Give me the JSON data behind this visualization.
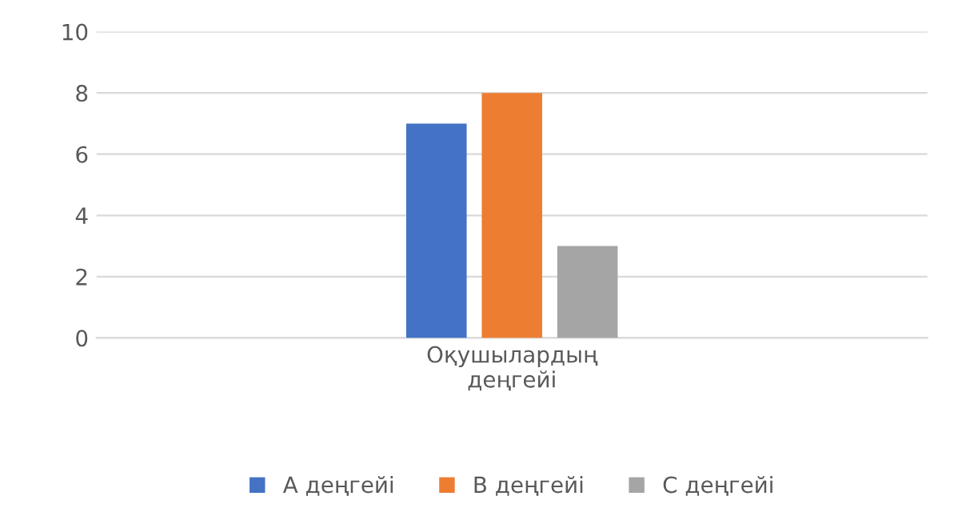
{
  "chart_data": {
    "type": "bar",
    "categories": [
      "Оқушылардың деңгейі"
    ],
    "series": [
      {
        "name": "A деңгейі",
        "color": "#4472c4",
        "values": [
          7
        ]
      },
      {
        "name": "B деңгейі",
        "color": "#ed7d31",
        "values": [
          8
        ]
      },
      {
        "name": "C деңгейі",
        "color": "#a5a5a5",
        "values": [
          3
        ]
      }
    ],
    "ylim": [
      0,
      10
    ],
    "yticks": [
      0,
      2,
      4,
      6,
      8,
      10
    ],
    "grid": "y",
    "legend": "bottom"
  }
}
